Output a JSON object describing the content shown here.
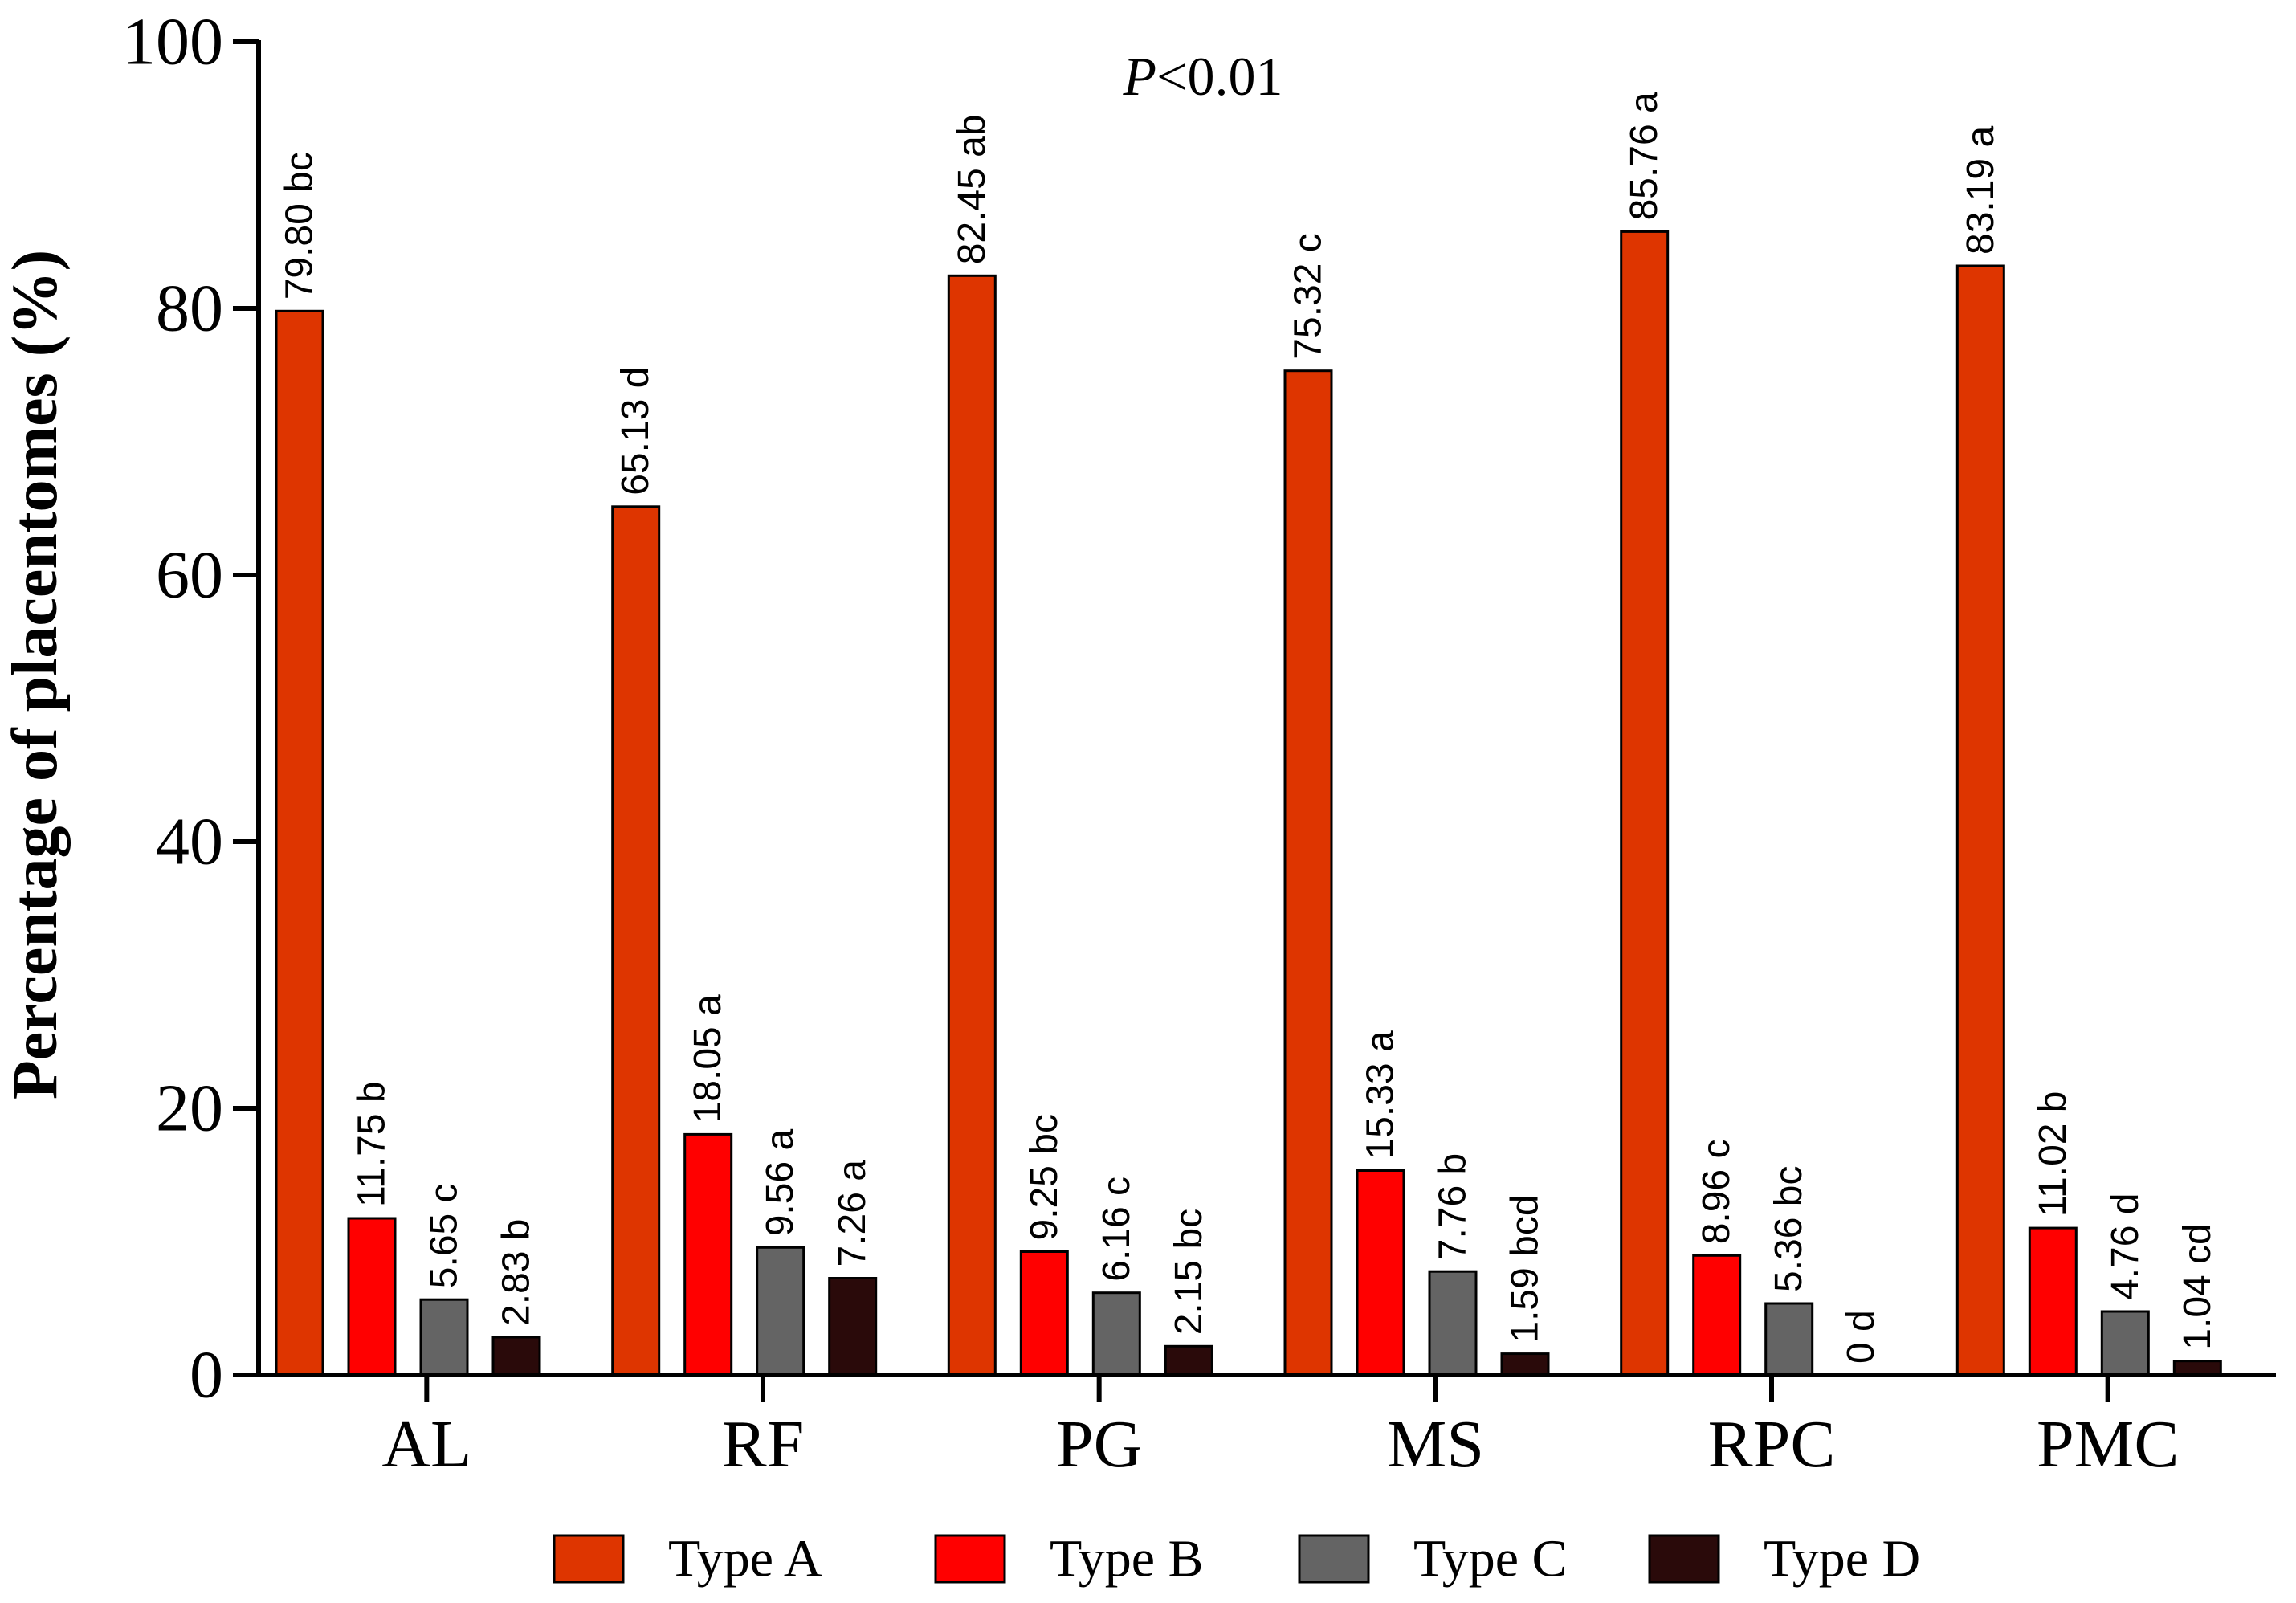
{
  "chart_data": {
    "type": "bar",
    "title": "",
    "annotation_prefix": "P",
    "annotation_suffix": "<0.01",
    "xlabel": "",
    "ylabel": "Percentage of placentomes (%)",
    "ylim": [
      0,
      100
    ],
    "yticks": [
      0,
      20,
      40,
      60,
      80,
      100
    ],
    "grid": false,
    "legend_position": "bottom",
    "categories": [
      "AL",
      "RF",
      "PG",
      "MS",
      "RPC",
      "PMC"
    ],
    "series": [
      {
        "name": "Type A",
        "color": "#DE3500",
        "values": [
          79.8,
          65.13,
          82.45,
          75.32,
          85.76,
          83.19
        ],
        "labels": [
          "79.80 bc",
          "65.13 d",
          "82.45 ab",
          "75.32 c",
          "85.76 a",
          "83.19 a"
        ]
      },
      {
        "name": "Type B",
        "color": "#FF0000",
        "values": [
          11.75,
          18.05,
          9.25,
          15.33,
          8.96,
          11.02
        ],
        "labels": [
          "11.75 b",
          "18.05 a",
          "9.25 bc",
          "15.33 a",
          "8.96 c",
          "11.02 b"
        ]
      },
      {
        "name": "Type C",
        "color": "#646464",
        "values": [
          5.65,
          9.56,
          6.16,
          7.76,
          5.36,
          4.76
        ],
        "labels": [
          "5.65 c",
          "9.56 a",
          "6.16 c",
          "7.76 b",
          "5.36 bc",
          "4.76 d"
        ]
      },
      {
        "name": "Type D",
        "color": "#2A0A0A",
        "values": [
          2.83,
          7.26,
          2.15,
          1.59,
          0,
          1.04
        ],
        "labels": [
          "2.83 b",
          "7.26 a",
          "2.15 bc",
          "1.59 bcd",
          "0 d",
          "1.04 cd"
        ]
      }
    ]
  }
}
